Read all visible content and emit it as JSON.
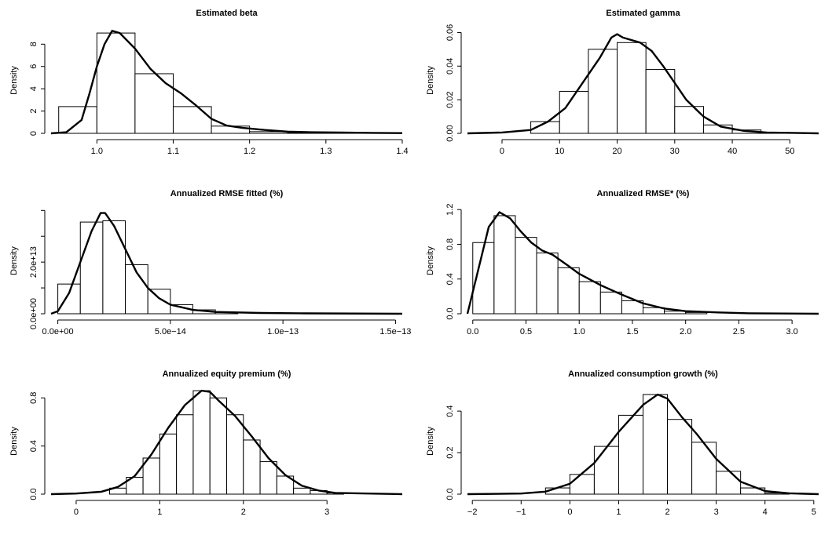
{
  "chart_data": [
    {
      "type": "bar",
      "title": "Estimated beta",
      "xlabel": "",
      "ylabel": "Density",
      "xlim": [
        0.94,
        1.4
      ],
      "ylim": [
        0,
        9.5
      ],
      "xticks": [
        1.0,
        1.1,
        1.2,
        1.3,
        1.4
      ],
      "xtick_labels": [
        "1.0",
        "1.1",
        "1.2",
        "1.3",
        "1.4"
      ],
      "yticks": [
        0,
        2,
        4,
        6,
        8
      ],
      "ytick_labels": [
        "0",
        "2",
        "4",
        "6",
        "8"
      ],
      "bins": [
        [
          0.95,
          1.0,
          2.4
        ],
        [
          1.0,
          1.05,
          9.0
        ],
        [
          1.05,
          1.1,
          5.35
        ],
        [
          1.1,
          1.15,
          2.4
        ],
        [
          1.15,
          1.2,
          0.65
        ],
        [
          1.2,
          1.25,
          0.15
        ],
        [
          1.25,
          1.3,
          0.05
        ],
        [
          1.3,
          1.35,
          0.02
        ]
      ],
      "density_curve": [
        [
          0.94,
          0.0
        ],
        [
          0.96,
          0.1
        ],
        [
          0.98,
          1.2
        ],
        [
          0.99,
          3.5
        ],
        [
          1.0,
          6.0
        ],
        [
          1.01,
          8.0
        ],
        [
          1.02,
          9.2
        ],
        [
          1.03,
          9.0
        ],
        [
          1.05,
          7.6
        ],
        [
          1.07,
          5.8
        ],
        [
          1.09,
          4.5
        ],
        [
          1.11,
          3.6
        ],
        [
          1.13,
          2.5
        ],
        [
          1.15,
          1.3
        ],
        [
          1.17,
          0.7
        ],
        [
          1.19,
          0.5
        ],
        [
          1.22,
          0.3
        ],
        [
          1.25,
          0.15
        ],
        [
          1.28,
          0.1
        ],
        [
          1.32,
          0.07
        ],
        [
          1.36,
          0.04
        ],
        [
          1.4,
          0.02
        ]
      ]
    },
    {
      "type": "bar",
      "title": "Estimated gamma",
      "xlabel": "",
      "ylabel": "Density",
      "xlim": [
        -6,
        55
      ],
      "ylim": [
        0,
        0.063
      ],
      "xticks": [
        0,
        10,
        20,
        30,
        40,
        50
      ],
      "xtick_labels": [
        "0",
        "10",
        "20",
        "30",
        "40",
        "50"
      ],
      "yticks": [
        0.0,
        0.02,
        0.04,
        0.06
      ],
      "ytick_labels": [
        "0.00",
        "0.02",
        "0.04",
        "0.06"
      ],
      "bins": [
        [
          5,
          10,
          0.007
        ],
        [
          10,
          15,
          0.025
        ],
        [
          15,
          20,
          0.05
        ],
        [
          20,
          25,
          0.054
        ],
        [
          25,
          30,
          0.038
        ],
        [
          30,
          35,
          0.016
        ],
        [
          35,
          40,
          0.005
        ],
        [
          40,
          45,
          0.002
        ],
        [
          45,
          50,
          0.0005
        ]
      ],
      "density_curve": [
        [
          -6,
          0.0
        ],
        [
          0,
          0.0005
        ],
        [
          5,
          0.002
        ],
        [
          8,
          0.007
        ],
        [
          11,
          0.015
        ],
        [
          14,
          0.03
        ],
        [
          17,
          0.045
        ],
        [
          19,
          0.057
        ],
        [
          20,
          0.059
        ],
        [
          21,
          0.057
        ],
        [
          24,
          0.054
        ],
        [
          26,
          0.049
        ],
        [
          28,
          0.04
        ],
        [
          30,
          0.03
        ],
        [
          32,
          0.02
        ],
        [
          35,
          0.01
        ],
        [
          38,
          0.004
        ],
        [
          42,
          0.0015
        ],
        [
          46,
          0.0005
        ],
        [
          55,
          0.0
        ]
      ]
    },
    {
      "type": "bar",
      "title": "Annualized RMSE fitted (%)",
      "xlabel": "",
      "ylabel": "Density",
      "xlim": [
        -3e-15,
        1.53e-13
      ],
      "ylim": [
        0,
        41000000000000.0
      ],
      "xticks": [
        0,
        5e-14,
        1e-13,
        1.5e-13
      ],
      "xtick_labels": [
        "0.0e+00",
        "5.0e−14",
        "1.0e−13",
        "1.5e−13"
      ],
      "yticks": [
        0,
        10000000000000.0,
        20000000000000.0,
        30000000000000.0,
        40000000000000.0
      ],
      "ytick_labels": [
        "0.0e+00",
        "",
        "2.0e+13",
        "",
        ""
      ],
      "bins": [
        [
          0,
          1e-14,
          11500000000000.0
        ],
        [
          1e-14,
          2e-14,
          35500000000000.0
        ],
        [
          2e-14,
          3e-14,
          36000000000000.0
        ],
        [
          3e-14,
          4e-14,
          19000000000000.0
        ],
        [
          4e-14,
          5e-14,
          9500000000000.0
        ],
        [
          5e-14,
          6e-14,
          3500000000000.0
        ],
        [
          6e-14,
          7e-14,
          1500000000000.0
        ],
        [
          7e-14,
          8e-14,
          500000000000.0
        ]
      ],
      "density_curve": [
        [
          -3e-15,
          0.0
        ],
        [
          0.0,
          1000000000000.0
        ],
        [
          5e-15,
          8000000000000.0
        ],
        [
          1e-14,
          20000000000000.0
        ],
        [
          1.5e-14,
          32000000000000.0
        ],
        [
          1.9e-14,
          39000000000000.0
        ],
        [
          2.1e-14,
          39000000000000.0
        ],
        [
          2.5e-14,
          34000000000000.0
        ],
        [
          3e-14,
          25000000000000.0
        ],
        [
          3.5e-14,
          16000000000000.0
        ],
        [
          4e-14,
          10000000000000.0
        ],
        [
          4.5e-14,
          6000000000000.0
        ],
        [
          5e-14,
          3500000000000.0
        ],
        [
          6e-14,
          1500000000000.0
        ],
        [
          7e-14,
          700000000000.0
        ],
        [
          9e-14,
          300000000000.0
        ],
        [
          1.1e-13,
          150000000000.0
        ],
        [
          1.53e-13,
          0.0
        ]
      ]
    },
    {
      "type": "bar",
      "title": "Annualized RMSE* (%)",
      "xlabel": "",
      "ylabel": "Density",
      "xlim": [
        -0.05,
        3.25
      ],
      "ylim": [
        0,
        1.22
      ],
      "xticks": [
        0.0,
        0.5,
        1.0,
        1.5,
        2.0,
        2.5,
        3.0
      ],
      "xtick_labels": [
        "0.0",
        "0.5",
        "1.0",
        "1.5",
        "2.0",
        "2.5",
        "3.0"
      ],
      "yticks": [
        0.0,
        0.4,
        0.8,
        1.2
      ],
      "ytick_labels": [
        "0.0",
        "0.4",
        "0.8",
        "1.2"
      ],
      "bins": [
        [
          0.0,
          0.2,
          0.82
        ],
        [
          0.2,
          0.4,
          1.13
        ],
        [
          0.4,
          0.6,
          0.88
        ],
        [
          0.6,
          0.8,
          0.7
        ],
        [
          0.8,
          1.0,
          0.53
        ],
        [
          1.0,
          1.2,
          0.37
        ],
        [
          1.2,
          1.4,
          0.25
        ],
        [
          1.4,
          1.6,
          0.15
        ],
        [
          1.6,
          1.8,
          0.07
        ],
        [
          1.8,
          2.0,
          0.03
        ],
        [
          2.0,
          2.2,
          0.015
        ]
      ],
      "density_curve": [
        [
          -0.05,
          0.0
        ],
        [
          0.05,
          0.5
        ],
        [
          0.15,
          1.0
        ],
        [
          0.25,
          1.17
        ],
        [
          0.35,
          1.1
        ],
        [
          0.45,
          0.95
        ],
        [
          0.55,
          0.82
        ],
        [
          0.65,
          0.73
        ],
        [
          0.75,
          0.68
        ],
        [
          0.9,
          0.55
        ],
        [
          1.0,
          0.46
        ],
        [
          1.2,
          0.33
        ],
        [
          1.4,
          0.22
        ],
        [
          1.6,
          0.12
        ],
        [
          1.8,
          0.06
        ],
        [
          2.0,
          0.03
        ],
        [
          2.3,
          0.015
        ],
        [
          2.6,
          0.005
        ],
        [
          3.25,
          0.0
        ]
      ]
    },
    {
      "type": "bar",
      "title": "Annualized equity premium (%)",
      "xlabel": "",
      "ylabel": "Density",
      "xlim": [
        -0.3,
        3.9
      ],
      "ylim": [
        0,
        0.88
      ],
      "xticks": [
        0,
        1,
        2,
        3
      ],
      "xtick_labels": [
        "0",
        "1",
        "2",
        "3"
      ],
      "yticks": [
        0.0,
        0.4,
        0.8
      ],
      "ytick_labels": [
        "0.0",
        "0.4",
        "0.8"
      ],
      "bins": [
        [
          0.4,
          0.6,
          0.05
        ],
        [
          0.6,
          0.8,
          0.14
        ],
        [
          0.8,
          1.0,
          0.3
        ],
        [
          1.0,
          1.2,
          0.5
        ],
        [
          1.2,
          1.4,
          0.66
        ],
        [
          1.4,
          1.6,
          0.86
        ],
        [
          1.6,
          1.8,
          0.8
        ],
        [
          1.8,
          2.0,
          0.66
        ],
        [
          2.0,
          2.2,
          0.45
        ],
        [
          2.2,
          2.4,
          0.27
        ],
        [
          2.4,
          2.6,
          0.15
        ],
        [
          2.6,
          2.8,
          0.05
        ],
        [
          2.8,
          3.0,
          0.03
        ],
        [
          3.0,
          3.2,
          0.01
        ]
      ],
      "density_curve": [
        [
          -0.3,
          0.0
        ],
        [
          0.0,
          0.005
        ],
        [
          0.3,
          0.02
        ],
        [
          0.5,
          0.06
        ],
        [
          0.7,
          0.15
        ],
        [
          0.9,
          0.33
        ],
        [
          1.1,
          0.55
        ],
        [
          1.3,
          0.74
        ],
        [
          1.5,
          0.86
        ],
        [
          1.6,
          0.85
        ],
        [
          1.7,
          0.78
        ],
        [
          1.9,
          0.65
        ],
        [
          2.1,
          0.48
        ],
        [
          2.3,
          0.3
        ],
        [
          2.5,
          0.16
        ],
        [
          2.7,
          0.07
        ],
        [
          2.9,
          0.03
        ],
        [
          3.1,
          0.01
        ],
        [
          3.9,
          0.0
        ]
      ]
    },
    {
      "type": "bar",
      "title": "Annualized consumption growth (%)",
      "xlabel": "",
      "ylabel": "Density",
      "xlim": [
        -2.1,
        5.1
      ],
      "ylim": [
        0,
        0.51
      ],
      "xticks": [
        -2,
        -1,
        0,
        1,
        2,
        3,
        4,
        5
      ],
      "xtick_labels": [
        "−2",
        "−1",
        "0",
        "1",
        "2",
        "3",
        "4",
        "5"
      ],
      "yticks": [
        0.0,
        0.2,
        0.4
      ],
      "ytick_labels": [
        "0.0",
        "0.2",
        "0.4"
      ],
      "bins": [
        [
          -0.5,
          0.0,
          0.03
        ],
        [
          0.0,
          0.5,
          0.095
        ],
        [
          0.5,
          1.0,
          0.23
        ],
        [
          1.0,
          1.5,
          0.38
        ],
        [
          1.5,
          2.0,
          0.48
        ],
        [
          2.0,
          2.5,
          0.36
        ],
        [
          2.5,
          3.0,
          0.25
        ],
        [
          3.0,
          3.5,
          0.11
        ],
        [
          3.5,
          4.0,
          0.03
        ],
        [
          4.0,
          4.5,
          0.005
        ]
      ],
      "density_curve": [
        [
          -2.1,
          0.0
        ],
        [
          -1.0,
          0.003
        ],
        [
          -0.5,
          0.012
        ],
        [
          0.0,
          0.05
        ],
        [
          0.5,
          0.15
        ],
        [
          1.0,
          0.3
        ],
        [
          1.5,
          0.43
        ],
        [
          1.8,
          0.48
        ],
        [
          2.0,
          0.46
        ],
        [
          2.3,
          0.37
        ],
        [
          2.6,
          0.29
        ],
        [
          3.0,
          0.17
        ],
        [
          3.5,
          0.06
        ],
        [
          4.0,
          0.015
        ],
        [
          4.5,
          0.004
        ],
        [
          5.1,
          0.0
        ]
      ]
    }
  ]
}
